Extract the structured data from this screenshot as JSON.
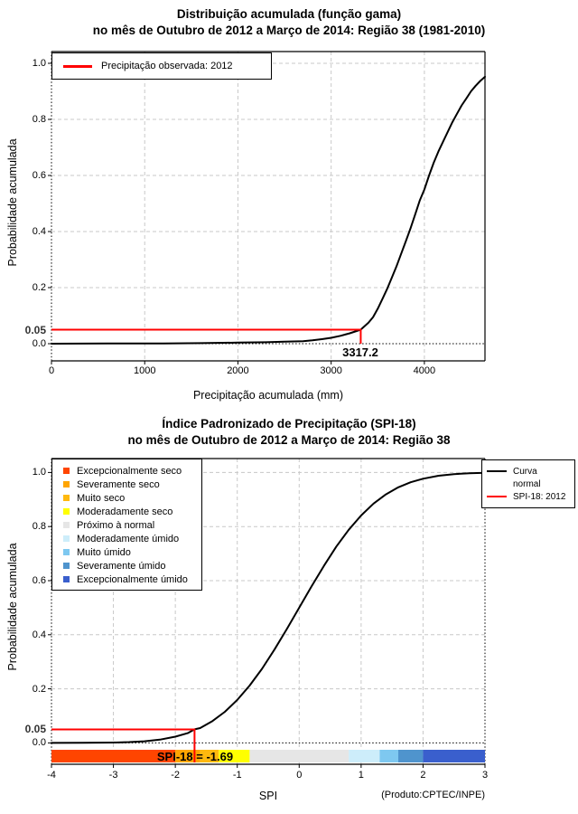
{
  "page": {
    "background": "#ffffff",
    "footnote": "(Produto:CPTEC/INPE)"
  },
  "colors": {
    "observed_line": "#ff0000",
    "curve": "#000000",
    "grid": "#c8c8c8"
  },
  "chart_data": [
    {
      "type": "line",
      "title": "Distribuição acumulada (função gama)",
      "subtitle": "no mês de Outubro de 2012 a Março de 2014: Região 38 (1981-2010)",
      "xlabel": "Precipitação acumulada (mm)",
      "ylabel": "Probabilidade acumulada",
      "xlim": [
        0,
        4650
      ],
      "ylim": [
        0,
        1
      ],
      "x_ticks": [
        0,
        1000,
        2000,
        3000,
        4000
      ],
      "y_ticks": [
        "0.0",
        "0.2",
        "0.4",
        "0.6",
        "0.8",
        "1.0"
      ],
      "y_special_tick": {
        "value": 0.05,
        "label": "0.05"
      },
      "grid": "dashed",
      "legend_position": "top-left",
      "legend": [
        {
          "label": "Precipitação observada: 2012",
          "color": "#ff0000"
        }
      ],
      "series": [
        {
          "name": "Distribuição gama acumulada",
          "color": "#000000",
          "points": [
            [
              0,
              0.0
            ],
            [
              600,
              0.0005
            ],
            [
              1200,
              0.001
            ],
            [
              1600,
              0.002
            ],
            [
              2000,
              0.004
            ],
            [
              2300,
              0.005
            ],
            [
              2500,
              0.007
            ],
            [
              2700,
              0.009
            ],
            [
              2800,
              0.012
            ],
            [
              2900,
              0.016
            ],
            [
              3000,
              0.021
            ],
            [
              3100,
              0.028
            ],
            [
              3200,
              0.037
            ],
            [
              3317.2,
              0.05
            ],
            [
              3400,
              0.075
            ],
            [
              3450,
              0.095
            ],
            [
              3500,
              0.125
            ],
            [
              3550,
              0.16
            ],
            [
              3600,
              0.195
            ],
            [
              3650,
              0.235
            ],
            [
              3700,
              0.275
            ],
            [
              3750,
              0.32
            ],
            [
              3800,
              0.365
            ],
            [
              3850,
              0.41
            ],
            [
              3900,
              0.46
            ],
            [
              3950,
              0.51
            ],
            [
              4000,
              0.55
            ],
            [
              4050,
              0.6
            ],
            [
              4100,
              0.645
            ],
            [
              4150,
              0.685
            ],
            [
              4200,
              0.72
            ],
            [
              4250,
              0.755
            ],
            [
              4300,
              0.79
            ],
            [
              4350,
              0.82
            ],
            [
              4400,
              0.85
            ],
            [
              4450,
              0.875
            ],
            [
              4500,
              0.9
            ],
            [
              4550,
              0.92
            ],
            [
              4600,
              0.937
            ],
            [
              4650,
              0.952
            ]
          ]
        }
      ],
      "marker": {
        "x": 3317.2,
        "y": 0.05,
        "label": "3317.2",
        "color": "#ff0000"
      }
    },
    {
      "type": "line",
      "title": "Índice Padronizado de Precipitação (SPI-18)",
      "subtitle": "no mês de Outubro de 2012 a Março de 2014: Região 38",
      "xlabel": "SPI",
      "ylabel": "Probabilidade acumulada",
      "xlim": [
        -4,
        3
      ],
      "ylim": [
        0,
        1
      ],
      "x_ticks": [
        -4,
        -3,
        -2,
        -1,
        0,
        1,
        2,
        3
      ],
      "y_ticks": [
        "0.0",
        "0.2",
        "0.4",
        "0.6",
        "0.8",
        "1.0"
      ],
      "y_special_tick": {
        "value": 0.05,
        "label": "0.05"
      },
      "grid": "dashed",
      "legend_right": [
        {
          "lines": [
            "Curva",
            "normal"
          ],
          "color": "#000000"
        },
        {
          "lines": [
            "SPI-18: 2012"
          ],
          "color": "#ff0000"
        }
      ],
      "categories": [
        {
          "label": "Excepcionalmente seco",
          "color": "#FF4500",
          "range": [
            -4,
            -2
          ]
        },
        {
          "label": "Severamente seco",
          "color": "#FFA500",
          "range": [
            -2,
            -1.6
          ]
        },
        {
          "label": "Muito seco",
          "color": "#FFB90F",
          "range": [
            -1.6,
            -1.3
          ]
        },
        {
          "label": "Moderadamente seco",
          "color": "#FFFF00",
          "range": [
            -1.3,
            -0.8
          ]
        },
        {
          "label": "Próximo à normal",
          "color": "#E6E6E6",
          "range": [
            -0.8,
            0.8
          ]
        },
        {
          "label": "Moderadamente úmido",
          "color": "#CDEDFA",
          "range": [
            0.8,
            1.3
          ]
        },
        {
          "label": "Muito úmido",
          "color": "#7EC8F0",
          "range": [
            1.3,
            1.6
          ]
        },
        {
          "label": "Severamente úmido",
          "color": "#4F94CD",
          "range": [
            1.6,
            2
          ]
        },
        {
          "label": "Excepcionalmente úmido",
          "color": "#3A5FCD",
          "range": [
            2,
            3
          ]
        }
      ],
      "series": [
        {
          "name": "Curva normal",
          "color": "#000000",
          "points": [
            [
              -4,
              0.0
            ],
            [
              -3.5,
              0.0002
            ],
            [
              -3,
              0.0013
            ],
            [
              -2.75,
              0.003
            ],
            [
              -2.5,
              0.006
            ],
            [
              -2.25,
              0.012
            ],
            [
              -2,
              0.023
            ],
            [
              -1.8,
              0.036
            ],
            [
              -1.69,
              0.05
            ],
            [
              -1.6,
              0.055
            ],
            [
              -1.4,
              0.081
            ],
            [
              -1.2,
              0.115
            ],
            [
              -1,
              0.159
            ],
            [
              -0.8,
              0.212
            ],
            [
              -0.6,
              0.274
            ],
            [
              -0.4,
              0.345
            ],
            [
              -0.2,
              0.421
            ],
            [
              0,
              0.5
            ],
            [
              0.2,
              0.579
            ],
            [
              0.4,
              0.655
            ],
            [
              0.6,
              0.726
            ],
            [
              0.8,
              0.788
            ],
            [
              1,
              0.841
            ],
            [
              1.2,
              0.885
            ],
            [
              1.4,
              0.919
            ],
            [
              1.6,
              0.945
            ],
            [
              1.8,
              0.964
            ],
            [
              2,
              0.977
            ],
            [
              2.25,
              0.988
            ],
            [
              2.5,
              0.994
            ],
            [
              2.75,
              0.997
            ],
            [
              3,
              0.9987
            ]
          ]
        }
      ],
      "marker": {
        "x": -1.69,
        "y": 0.05,
        "label": "SPI-18 = -1.69",
        "color": "#ff0000"
      }
    }
  ]
}
